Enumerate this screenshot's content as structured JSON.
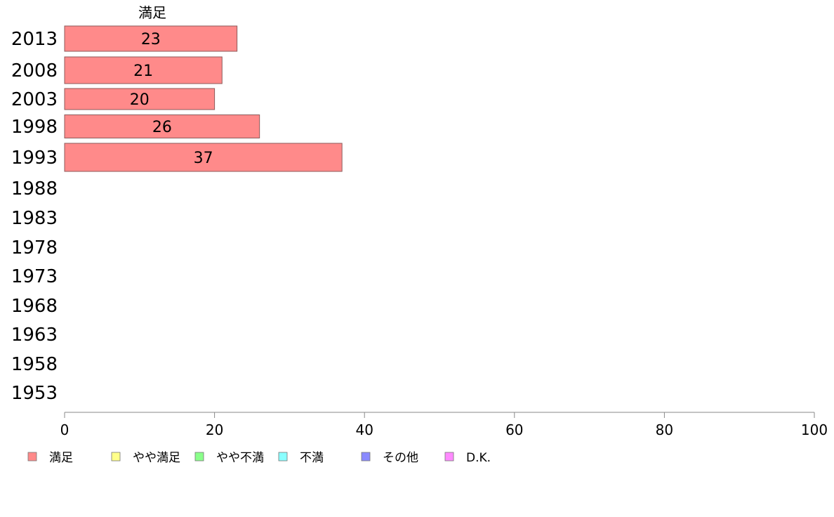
{
  "chart_data": {
    "type": "bar",
    "orientation": "horizontal",
    "series_header": "満足",
    "categories": [
      "2013",
      "2008",
      "2003",
      "1998",
      "1993",
      "1988",
      "1983",
      "1978",
      "1973",
      "1968",
      "1963",
      "1958",
      "1953"
    ],
    "series": [
      {
        "name": "満足",
        "values": [
          23,
          21,
          20,
          26,
          37,
          null,
          null,
          null,
          null,
          null,
          null,
          null,
          null
        ]
      }
    ],
    "data_labels": [
      "23",
      "21",
      "20",
      "26",
      "37"
    ],
    "xlim": [
      0,
      100
    ],
    "xticks": [
      "0",
      "20",
      "40",
      "60",
      "80",
      "100"
    ],
    "legend": {
      "placement": "bottom-left",
      "items": [
        {
          "label": "満足",
          "color": "#ff8a8a"
        },
        {
          "label": "やや満足",
          "color": "#ffff8a"
        },
        {
          "label": "やや不満",
          "color": "#8aff8a"
        },
        {
          "label": "不満",
          "color": "#8affff"
        },
        {
          "label": "その他",
          "color": "#8a8aff"
        },
        {
          "label": "D.K.",
          "color": "#ff8aff"
        }
      ]
    },
    "bar_color": "#ff8a8a",
    "bar_stroke": "#8c5a5a",
    "axis_color": "#888888",
    "grid": false
  }
}
